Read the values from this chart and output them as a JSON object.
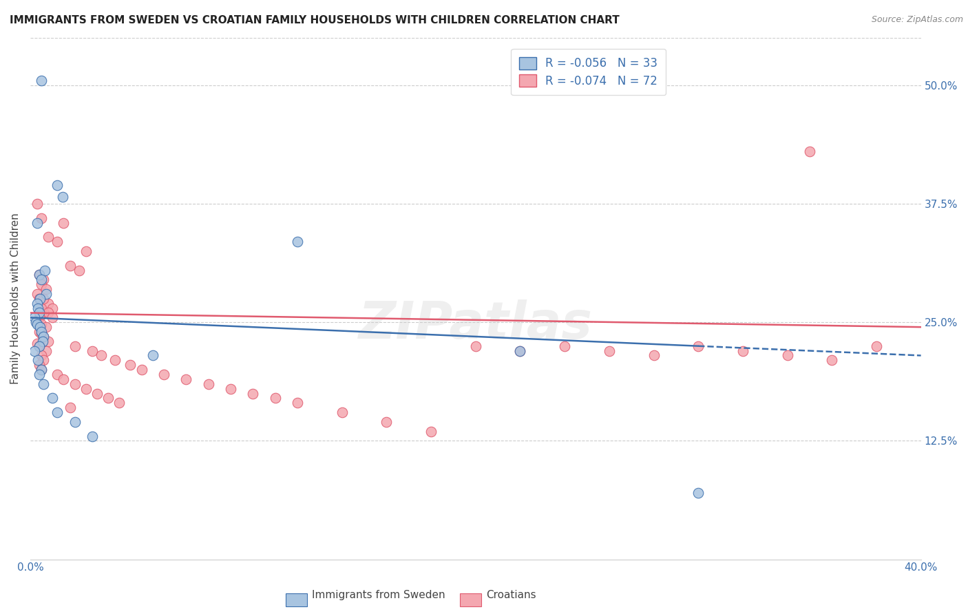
{
  "title": "IMMIGRANTS FROM SWEDEN VS CROATIAN FAMILY HOUSEHOLDS WITH CHILDREN CORRELATION CHART",
  "source": "Source: ZipAtlas.com",
  "ylabel": "Family Households with Children",
  "legend_label1": "Immigrants from Sweden",
  "legend_label2": "Croatians",
  "r1": "-0.056",
  "n1": "33",
  "r2": "-0.074",
  "n2": "72",
  "xmin": 0.0,
  "xmax": 40.0,
  "ymin": 0.0,
  "ymax": 55.0,
  "right_yticks": [
    12.5,
    25.0,
    37.5,
    50.0
  ],
  "right_yticklabels": [
    "12.5%",
    "25.0%",
    "37.5%",
    "50.0%"
  ],
  "color_blue": "#a8c4e0",
  "color_pink": "#f4a7b0",
  "line_blue": "#3b6fad",
  "line_pink": "#e05a6e",
  "blue_x": [
    0.5,
    1.2,
    1.45,
    0.3,
    0.4,
    0.65,
    0.5,
    0.7,
    0.45,
    0.3,
    0.35,
    0.4,
    0.2,
    0.25,
    0.3,
    0.45,
    0.5,
    0.6,
    0.55,
    0.4,
    0.2,
    0.35,
    0.5,
    0.4,
    0.6,
    1.0,
    1.2,
    2.0,
    2.8,
    5.5,
    12.0,
    22.0,
    30.0
  ],
  "blue_y": [
    50.5,
    39.5,
    38.2,
    35.5,
    30.0,
    30.5,
    29.5,
    28.0,
    27.5,
    27.0,
    26.5,
    26.0,
    25.5,
    25.0,
    24.8,
    24.5,
    24.0,
    23.5,
    23.0,
    22.5,
    22.0,
    21.0,
    20.0,
    19.5,
    18.5,
    17.0,
    15.5,
    14.5,
    13.0,
    21.5,
    33.5,
    22.0,
    7.0
  ],
  "pink_x": [
    0.3,
    0.5,
    1.5,
    0.8,
    1.2,
    2.5,
    1.8,
    2.2,
    0.4,
    0.6,
    0.5,
    0.7,
    0.3,
    0.4,
    0.8,
    1.0,
    0.6,
    0.5,
    0.4,
    0.3,
    0.5,
    0.7,
    0.4,
    0.5,
    0.6,
    0.8,
    0.3,
    0.4,
    0.7,
    0.5,
    0.6,
    0.4,
    0.5,
    1.2,
    1.5,
    2.0,
    2.5,
    3.0,
    3.5,
    4.0,
    1.8,
    0.6,
    0.5,
    0.8,
    1.0,
    2.0,
    2.8,
    3.2,
    3.8,
    4.5,
    5.0,
    6.0,
    7.0,
    8.0,
    9.0,
    10.0,
    11.0,
    12.0,
    14.0,
    16.0,
    18.0,
    20.0,
    22.0,
    24.0,
    26.0,
    28.0,
    30.0,
    32.0,
    34.0,
    36.0,
    38.0,
    35.0
  ],
  "pink_y": [
    37.5,
    36.0,
    35.5,
    34.0,
    33.5,
    32.5,
    31.0,
    30.5,
    30.0,
    29.5,
    29.0,
    28.5,
    28.0,
    27.5,
    27.0,
    26.5,
    26.0,
    25.8,
    25.5,
    25.0,
    24.8,
    24.5,
    24.0,
    23.8,
    23.5,
    23.0,
    22.8,
    22.5,
    22.0,
    21.5,
    21.0,
    20.5,
    20.0,
    19.5,
    19.0,
    18.5,
    18.0,
    17.5,
    17.0,
    16.5,
    16.0,
    27.5,
    26.5,
    26.0,
    25.5,
    22.5,
    22.0,
    21.5,
    21.0,
    20.5,
    20.0,
    19.5,
    19.0,
    18.5,
    18.0,
    17.5,
    17.0,
    16.5,
    15.5,
    14.5,
    13.5,
    22.5,
    22.0,
    22.5,
    22.0,
    21.5,
    22.5,
    22.0,
    21.5,
    21.0,
    22.5,
    43.0
  ],
  "watermark": "ZIPatlas",
  "background_color": "#ffffff",
  "grid_color": "#cccccc",
  "blue_line_start_x": 0.0,
  "blue_line_start_y": 25.5,
  "blue_line_end_x": 30.0,
  "blue_line_end_y": 22.5,
  "blue_dash_end_x": 40.0,
  "blue_dash_end_y": 21.5,
  "pink_line_start_x": 0.0,
  "pink_line_start_y": 26.0,
  "pink_line_end_x": 40.0,
  "pink_line_end_y": 24.5
}
